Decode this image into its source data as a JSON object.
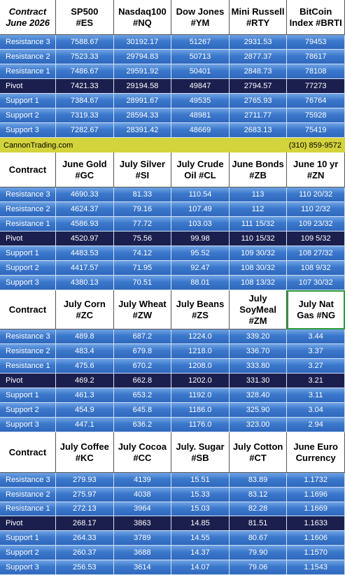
{
  "sections": [
    {
      "header": [
        "Contract\nJune 2026",
        "SP500\n#ES",
        "Nasdaq100\n#NQ",
        "Dow Jones\n#YM",
        "Mini Russell\n#RTY",
        "BitCoin\nIndex #BRTI"
      ],
      "rows": [
        [
          "Resistance 3",
          "7588.67",
          "30192.17",
          "51267",
          "2931.53",
          "79453"
        ],
        [
          "Resistance 2",
          "7523.33",
          "29794.83",
          "50713",
          "2877.37",
          "78617"
        ],
        [
          "Resistance 1",
          "7486.67",
          "29591.92",
          "50401",
          "2848.73",
          "78108"
        ],
        [
          "Pivot",
          "7421.33",
          "29194.58",
          "49847",
          "2794.57",
          "77273"
        ],
        [
          "Support 1",
          "7384.67",
          "28991.67",
          "49535",
          "2765.93",
          "76764"
        ],
        [
          "Support 2",
          "7319.33",
          "28594.33",
          "48981",
          "2711.77",
          "75928"
        ],
        [
          "Support 3",
          "7282.67",
          "28391.42",
          "48669",
          "2683.13",
          "75419"
        ]
      ]
    },
    {
      "header": [
        "Contract",
        "June Gold\n#GC",
        "July Silver\n#SI",
        "July Crude\nOil #CL",
        "June Bonds\n#ZB",
        "June 10 yr\n#ZN"
      ],
      "rows": [
        [
          "Resistance 3",
          "4690.33",
          "81.33",
          "110.54",
          "113",
          "110 20/32"
        ],
        [
          "Resistance 2",
          "4624.37",
          "79.16",
          "107.49",
          "112",
          "110 2/32"
        ],
        [
          "Resistance 1",
          "4586.93",
          "77.72",
          "103.03",
          "111 15/32",
          "109 23/32"
        ],
        [
          "Pivot",
          "4520.97",
          "75.56",
          "99.98",
          "110 15/32",
          "109 5/32"
        ],
        [
          "Support 1",
          "4483.53",
          "74.12",
          "95.52",
          "109 30/32",
          "108 27/32"
        ],
        [
          "Support 2",
          "4417.57",
          "71.95",
          "92.47",
          "108 30/32",
          "108 9/32"
        ],
        [
          "Support 3",
          "4380.13",
          "70.51",
          "88.01",
          "108 13/32",
          "107 30/32"
        ]
      ]
    },
    {
      "header": [
        "Contract",
        "July Corn\n#ZC",
        "July  Wheat\n#ZW",
        "July Beans\n#ZS",
        "July\nSoyMeal\n#ZM",
        "July Nat\nGas #NG"
      ],
      "rows": [
        [
          "Resistance 3",
          "489.8",
          "687.2",
          "1224.0",
          "339.20",
          "3.44"
        ],
        [
          "Resistance 2",
          "483.4",
          "679.8",
          "1218.0",
          "336.70",
          "3.37"
        ],
        [
          "Resistance 1",
          "475.6",
          "670.2",
          "1208.0",
          "333.80",
          "3.27"
        ],
        [
          "Pivot",
          "469.2",
          "662.8",
          "1202.0",
          "331.30",
          "3.21"
        ],
        [
          "Support 1",
          "461.3",
          "653.2",
          "1192.0",
          "328.40",
          "3.11"
        ],
        [
          "Support 2",
          "454.9",
          "645.8",
          "1186.0",
          "325.90",
          "3.04"
        ],
        [
          "Support 3",
          "447.1",
          "636.2",
          "1176.0",
          "323.00",
          "2.94"
        ]
      ]
    },
    {
      "header": [
        "Contract",
        "July Coffee\n#KC",
        "July Cocoa\n#CC",
        "July. Sugar\n#SB",
        "July Cotton\n#CT",
        "June Euro\nCurrency"
      ],
      "rows": [
        [
          "Resistance 3",
          "279.93",
          "4139",
          "15.51",
          "83.89",
          "1.1732"
        ],
        [
          "Resistance 2",
          "275.97",
          "4038",
          "15.33",
          "83.12",
          "1.1696"
        ],
        [
          "Resistance 1",
          "272.13",
          "3964",
          "15.03",
          "82.28",
          "1.1669"
        ],
        [
          "Pivot",
          "268.17",
          "3863",
          "14.85",
          "81.51",
          "1.1633"
        ],
        [
          "Support 1",
          "264.33",
          "3789",
          "14.55",
          "80.67",
          "1.1606"
        ],
        [
          "Support 2",
          "260.37",
          "3688",
          "14.37",
          "79.90",
          "1.1570"
        ],
        [
          "Support 3",
          "256.53",
          "3614",
          "14.07",
          "79.06",
          "1.1543"
        ]
      ]
    }
  ],
  "banner": {
    "left": "CannonTrading.com",
    "right": "(310) 859-9572"
  }
}
